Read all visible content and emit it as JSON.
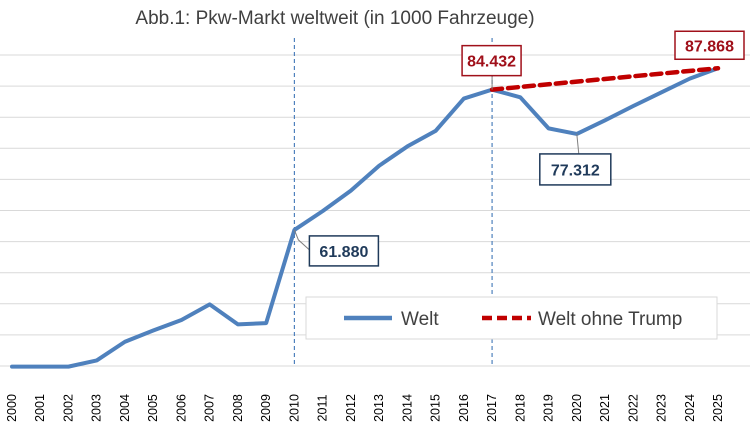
{
  "chart_data": {
    "type": "line",
    "title": "Abb.1: Pkw-Markt weltweit (in 1000 Fahrzeuge)",
    "xlabel": "",
    "ylabel": "",
    "categories": [
      "2000",
      "2001",
      "2002",
      "2003",
      "2004",
      "2005",
      "2006",
      "2007",
      "2008",
      "2009",
      "2010",
      "2011",
      "2012",
      "2013",
      "2014",
      "2015",
      "2016",
      "2017",
      "2018",
      "2019",
      "2020",
      "2021",
      "2022",
      "2023",
      "2024",
      "2025"
    ],
    "ylim": [
      40000,
      90000
    ],
    "ytick_step": 5000,
    "y_tick_labels_visible": false,
    "grid": "horizontal",
    "series": [
      {
        "name": "Welt",
        "color": "#4f81bd",
        "style": "solid",
        "values": [
          39900,
          39900,
          39900,
          40900,
          43900,
          45700,
          47400,
          49900,
          46700,
          46900,
          61880,
          64900,
          68200,
          72200,
          75300,
          77800,
          83000,
          84432,
          83200,
          78200,
          77312,
          79500,
          81800,
          84000,
          86200,
          87868
        ]
      },
      {
        "name": "Welt ohne Trump",
        "color": "#c00000",
        "style": "dashed",
        "x": [
          "2017",
          "2025"
        ],
        "values": [
          84432,
          87868
        ]
      }
    ],
    "vertical_markers": [
      "2010",
      "2017"
    ],
    "annotations": [
      {
        "text": "61.880",
        "x": "2010",
        "value": 61880,
        "color": "#1f3a5a"
      },
      {
        "text": "84.432",
        "x": "2017",
        "value": 84432,
        "color": "#a0101a"
      },
      {
        "text": "77.312",
        "x": "2020",
        "value": 77312,
        "color": "#1f3a5a"
      },
      {
        "text": "87.868",
        "x": "2025",
        "value": 87868,
        "color": "#a0101a"
      }
    ],
    "legend": "bottom-right"
  }
}
